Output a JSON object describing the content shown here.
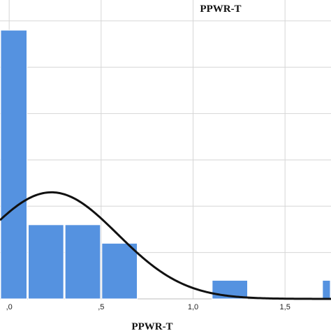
{
  "chart_data": {
    "type": "bar",
    "title": "PPWR-T",
    "xlabel": "PPWR-T",
    "ylabel": "",
    "x_tick_labels": [
      ",0",
      ",5",
      "1,0",
      "1,5"
    ],
    "x_ticks": [
      0.0,
      0.5,
      1.0,
      1.5
    ],
    "xlim": [
      -0.05,
      1.75
    ],
    "ylim": [
      0,
      6.3
    ],
    "grid": true,
    "bar_color": "#5592e0",
    "curve_color": "#111111",
    "bins": [
      {
        "start": -0.05,
        "end": 0.1,
        "count": 5.8
      },
      {
        "start": 0.1,
        "end": 0.3,
        "count": 1.6
      },
      {
        "start": 0.3,
        "end": 0.5,
        "count": 1.6
      },
      {
        "start": 0.5,
        "end": 0.7,
        "count": 1.2
      },
      {
        "start": 1.1,
        "end": 1.3,
        "count": 0.4
      },
      {
        "start": 1.7,
        "end": 1.9,
        "count": 0.4
      }
    ],
    "normal_curve": {
      "mean": 0.23,
      "sd": 0.36,
      "peak": 2.3
    }
  }
}
